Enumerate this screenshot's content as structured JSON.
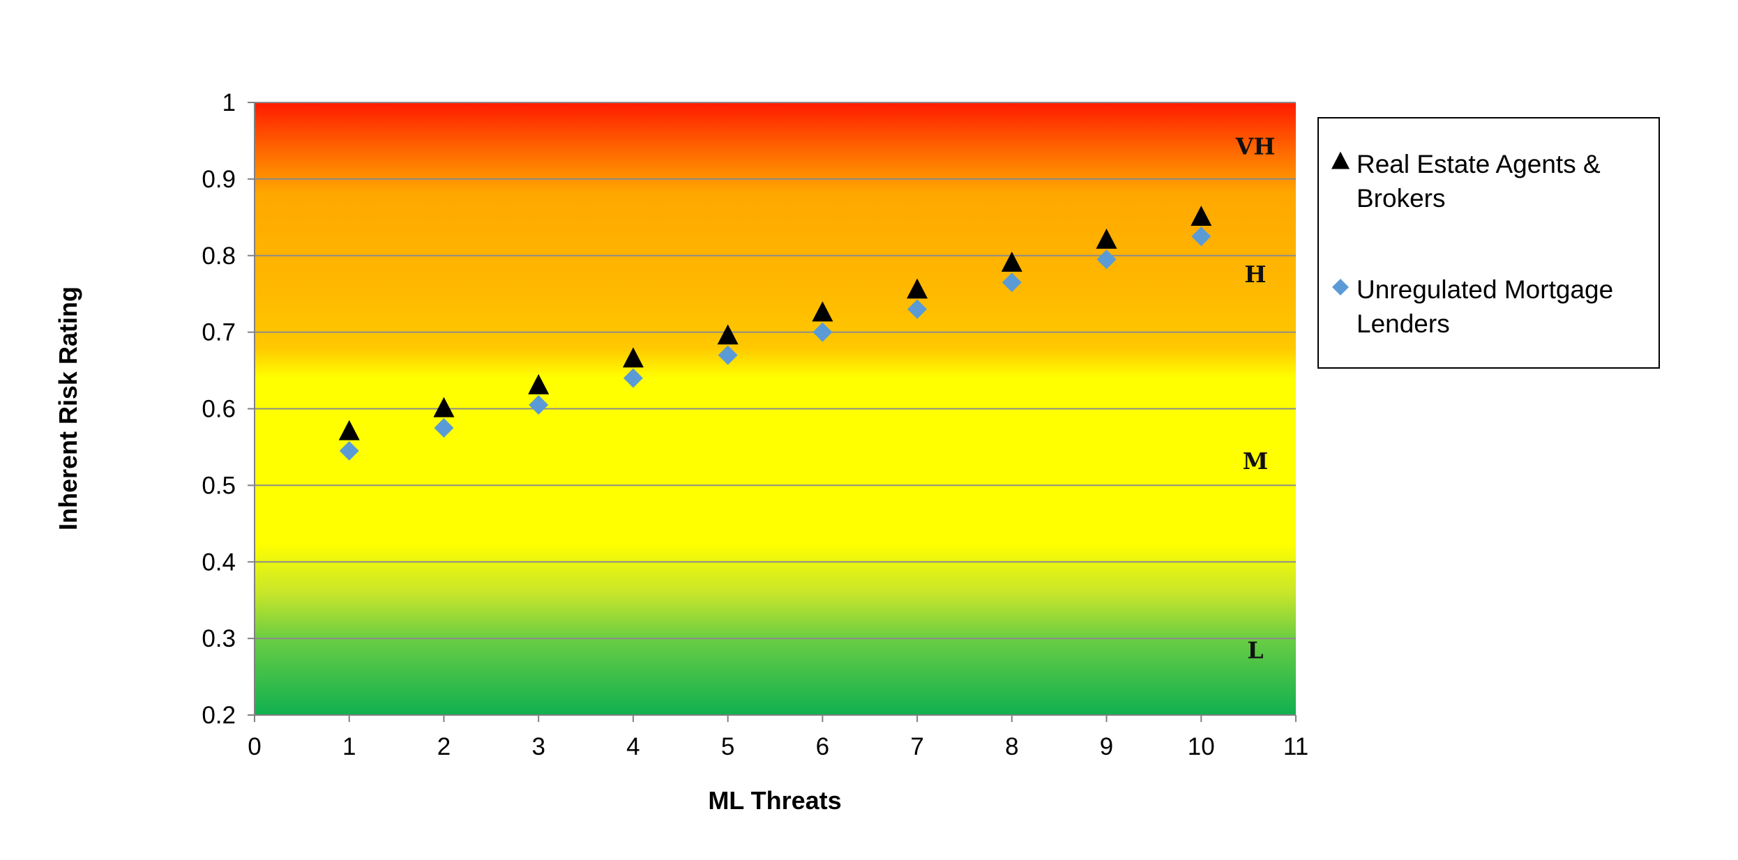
{
  "chart_data": {
    "type": "scatter",
    "title": "",
    "xlabel": "ML Threats",
    "ylabel": "Inherent Risk Rating",
    "xlim": [
      0,
      11
    ],
    "ylim": [
      0.2,
      1
    ],
    "x_ticks": [
      "0",
      "1",
      "2",
      "3",
      "4",
      "5",
      "6",
      "7",
      "8",
      "9",
      "10",
      "11"
    ],
    "y_ticks": [
      "0.2",
      "0.3",
      "0.4",
      "0.5",
      "0.6",
      "0.7",
      "0.8",
      "0.9",
      "1"
    ],
    "grid": "horizontal",
    "legend_position": "right",
    "risk_bands": [
      {
        "label": "L",
        "from": 0.2,
        "to": 0.4,
        "color": "#1db34a"
      },
      {
        "label": "M",
        "from": 0.4,
        "to": 0.65,
        "color": "#ffff00"
      },
      {
        "label": "H",
        "from": 0.65,
        "to": 0.9,
        "color": "#ffb400"
      },
      {
        "label": "VH",
        "from": 0.9,
        "to": 1.0,
        "color": "#ff1a00"
      }
    ],
    "series": [
      {
        "name": "Real Estate Agents & Brokers",
        "marker": "triangle",
        "color": "#000000",
        "x": [
          1,
          2,
          3,
          4,
          5,
          6,
          7,
          8,
          9,
          10
        ],
        "y": [
          0.57,
          0.6,
          0.63,
          0.665,
          0.695,
          0.725,
          0.755,
          0.79,
          0.82,
          0.85
        ]
      },
      {
        "name": "Unregulated Mortgage Lenders",
        "marker": "diamond",
        "color": "#5b9bd5",
        "x": [
          1,
          2,
          3,
          4,
          5,
          6,
          7,
          8,
          9,
          10
        ],
        "y": [
          0.545,
          0.575,
          0.605,
          0.64,
          0.67,
          0.7,
          0.73,
          0.765,
          0.795,
          0.825
        ]
      }
    ]
  }
}
